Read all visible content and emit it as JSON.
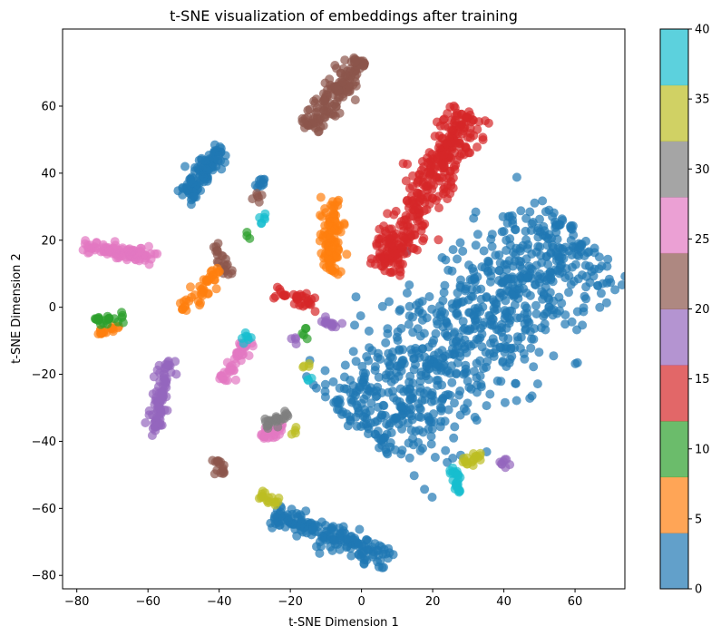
{
  "chart_data": {
    "type": "scatter",
    "title": "t-SNE visualization of embeddings after training",
    "xlabel": "t-SNE Dimension 1",
    "ylabel": "t-SNE Dimension 2",
    "xlim": [
      -84,
      74
    ],
    "ylim": [
      -84,
      83
    ],
    "xticks": [
      -80,
      -60,
      -40,
      -20,
      0,
      20,
      40,
      60
    ],
    "yticks": [
      -80,
      -60,
      -40,
      -20,
      0,
      20,
      40,
      60
    ],
    "grid": false,
    "point_alpha": 0.7,
    "colorbar": {
      "range": [
        0,
        40
      ],
      "ticks": [
        0,
        5,
        10,
        15,
        20,
        25,
        30,
        35,
        40
      ],
      "colors": [
        "#1f77b4",
        "#ff7f0e",
        "#2ca02c",
        "#d62728",
        "#9467bd",
        "#8c564b",
        "#e377c2",
        "#7f7f7f",
        "#bcbd22",
        "#17becf"
      ]
    },
    "clusters": [
      {
        "center": [
          32,
          -7
        ],
        "axis_end": [
          61,
          23
        ],
        "axis_start": [
          -1,
          -37
        ],
        "width": 20,
        "n": 900,
        "color_index": 0
      },
      {
        "center": [
          -45,
          40
        ],
        "axis_end": [
          -39,
          47
        ],
        "axis_start": [
          -50,
          33
        ],
        "width": 3,
        "n": 110,
        "color_index": 0
      },
      {
        "center": [
          -8,
          -69
        ],
        "axis_end": [
          8,
          -75
        ],
        "axis_start": [
          -24,
          -62
        ],
        "width": 3.5,
        "n": 180,
        "color_index": 0
      },
      {
        "center": [
          -28,
          37
        ],
        "axis_end": [
          -27,
          38
        ],
        "axis_start": [
          -29,
          36
        ],
        "width": 1.5,
        "n": 10,
        "color_index": 0
      },
      {
        "center": [
          18,
          35
        ],
        "axis_end": [
          30,
          58
        ],
        "axis_start": [
          6,
          11
        ],
        "width": 6,
        "n": 360,
        "color_index": 3
      },
      {
        "center": [
          -19,
          3
        ],
        "axis_end": [
          -13,
          0
        ],
        "axis_start": [
          -24,
          5
        ],
        "width": 2,
        "n": 35,
        "color_index": 3
      },
      {
        "center": [
          -9,
          64
        ],
        "axis_end": [
          0,
          74
        ],
        "axis_start": [
          -15,
          53
        ],
        "width": 3.5,
        "n": 160,
        "color_index": 5
      },
      {
        "center": [
          -40,
          15
        ],
        "axis_end": [
          -41,
          19
        ],
        "axis_start": [
          -38,
          10
        ],
        "width": 2,
        "n": 22,
        "color_index": 5
      },
      {
        "center": [
          -40,
          -48
        ],
        "axis_end": [
          -40,
          -45
        ],
        "axis_start": [
          -40,
          -50
        ],
        "width": 1.5,
        "n": 16,
        "color_index": 5
      },
      {
        "center": [
          -29,
          33
        ],
        "axis_end": [
          -28,
          34
        ],
        "axis_start": [
          -30,
          32
        ],
        "width": 1.2,
        "n": 6,
        "color_index": 5
      },
      {
        "center": [
          -10,
          22
        ],
        "axis_end": [
          -9,
          34
        ],
        "axis_start": [
          -8,
          10
        ],
        "width": 2.5,
        "n": 110,
        "color_index": 1
      },
      {
        "center": [
          -45,
          5
        ],
        "axis_end": [
          -40,
          11
        ],
        "axis_start": [
          -50,
          -1
        ],
        "width": 2,
        "n": 45,
        "color_index": 1
      },
      {
        "center": [
          -71,
          -6
        ],
        "axis_end": [
          -68,
          -6
        ],
        "axis_start": [
          -74,
          -7
        ],
        "width": 1,
        "n": 18,
        "color_index": 1
      },
      {
        "center": [
          -68,
          17
        ],
        "axis_end": [
          -58,
          15
        ],
        "axis_start": [
          -78,
          18
        ],
        "width": 1.6,
        "n": 110,
        "color_index": 6
      },
      {
        "center": [
          -35,
          -16
        ],
        "axis_end": [
          -32,
          -10
        ],
        "axis_start": [
          -39,
          -22
        ],
        "width": 1.8,
        "n": 50,
        "color_index": 6
      },
      {
        "center": [
          -25,
          -37
        ],
        "axis_end": [
          -22,
          -36
        ],
        "axis_start": [
          -28,
          -39
        ],
        "width": 1.6,
        "n": 30,
        "color_index": 6
      },
      {
        "center": [
          -71,
          -3
        ],
        "axis_end": [
          -67,
          -3
        ],
        "axis_start": [
          -75,
          -4
        ],
        "width": 1,
        "n": 24,
        "color_index": 2
      },
      {
        "center": [
          -31,
          22
        ],
        "axis_end": [
          -30,
          23
        ],
        "axis_start": [
          -32,
          21
        ],
        "width": 0.8,
        "n": 3,
        "color_index": 2
      },
      {
        "center": [
          -16,
          -7
        ],
        "axis_end": [
          -16,
          -5
        ],
        "axis_start": [
          -16,
          -9
        ],
        "width": 0.8,
        "n": 5,
        "color_index": 2
      },
      {
        "center": [
          -57,
          -27
        ],
        "axis_end": [
          -55,
          -16
        ],
        "axis_start": [
          -58,
          -37
        ],
        "width": 1.8,
        "n": 90,
        "color_index": 4
      },
      {
        "center": [
          -8,
          -5
        ],
        "axis_end": [
          -6,
          -6
        ],
        "axis_start": [
          -11,
          -4
        ],
        "width": 1.2,
        "n": 15,
        "color_index": 4
      },
      {
        "center": [
          -19,
          -10
        ],
        "axis_end": [
          -18,
          -9
        ],
        "axis_start": [
          -20,
          -11
        ],
        "width": 1,
        "n": 4,
        "color_index": 4
      },
      {
        "center": [
          40,
          -46
        ],
        "axis_end": [
          40,
          -45
        ],
        "axis_start": [
          40,
          -47
        ],
        "width": 1.2,
        "n": 8,
        "color_index": 4
      },
      {
        "center": [
          -24,
          -33
        ],
        "axis_end": [
          -21,
          -32
        ],
        "axis_start": [
          -27,
          -35
        ],
        "width": 1.4,
        "n": 28,
        "color_index": 7
      },
      {
        "center": [
          -28,
          26
        ],
        "axis_end": [
          -27,
          27
        ],
        "axis_start": [
          -29,
          25
        ],
        "width": 1,
        "n": 6,
        "color_index": 9
      },
      {
        "center": [
          -32,
          -9
        ],
        "axis_end": [
          -31,
          -8
        ],
        "axis_start": [
          -34,
          -10
        ],
        "width": 1,
        "n": 7,
        "color_index": 9
      },
      {
        "center": [
          -15,
          -21
        ],
        "axis_end": [
          -15,
          -21
        ],
        "axis_start": [
          -15,
          -21
        ],
        "width": 0.8,
        "n": 3,
        "color_index": 9
      },
      {
        "center": [
          26,
          -52
        ],
        "axis_end": [
          26,
          -48
        ],
        "axis_start": [
          27,
          -55
        ],
        "width": 1.3,
        "n": 25,
        "color_index": 9
      },
      {
        "center": [
          -27,
          -57
        ],
        "axis_end": [
          -24,
          -58
        ],
        "axis_start": [
          -29,
          -56
        ],
        "width": 1.2,
        "n": 18,
        "color_index": 8
      },
      {
        "center": [
          31,
          -46
        ],
        "axis_end": [
          34,
          -44
        ],
        "axis_start": [
          29,
          -47
        ],
        "width": 1.2,
        "n": 18,
        "color_index": 8
      },
      {
        "center": [
          -15,
          -17
        ],
        "axis_end": [
          -14,
          -17
        ],
        "axis_start": [
          -16,
          -18
        ],
        "width": 0.8,
        "n": 4,
        "color_index": 8
      },
      {
        "center": [
          -18,
          -38
        ],
        "axis_end": [
          -17,
          -38
        ],
        "axis_start": [
          -19,
          -37
        ],
        "width": 0.8,
        "n": 4,
        "color_index": 8
      }
    ]
  }
}
